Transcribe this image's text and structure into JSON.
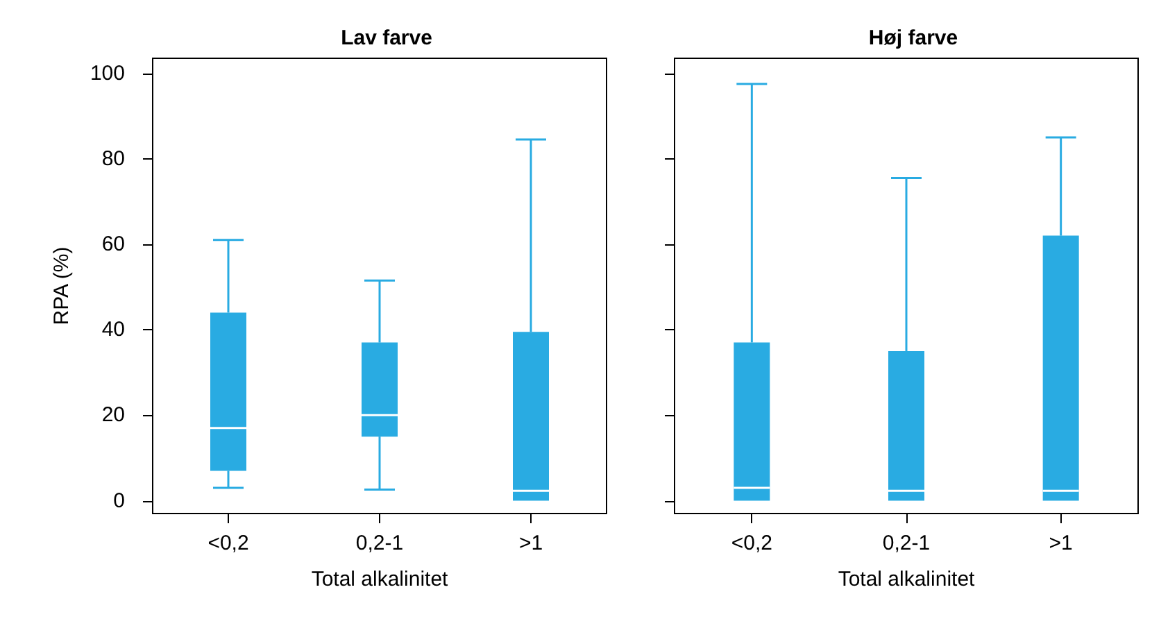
{
  "chart_data": [
    {
      "type": "box",
      "title": "Lav farve",
      "xlabel": "Total alkalinitet",
      "ylabel": "RPA (%)",
      "categories": [
        "<0,2",
        "0,2-1",
        ">1"
      ],
      "color": "#29abe2",
      "ylim": [
        -3,
        103.5
      ],
      "yticks": [
        0,
        20,
        40,
        60,
        80,
        100
      ],
      "boxes": [
        {
          "low": 3,
          "q1": 7,
          "median": 17,
          "q3": 44,
          "high": 61
        },
        {
          "low": 2.6,
          "q1": 15,
          "median": 20,
          "q3": 37,
          "high": 51.5
        },
        {
          "low": 0,
          "q1": 0,
          "median": 2.3,
          "q3": 39.5,
          "high": 84.5
        }
      ]
    },
    {
      "type": "box",
      "title": "Høj farve",
      "xlabel": "Total alkalinitet",
      "categories": [
        "<0,2",
        "0,2-1",
        ">1"
      ],
      "color": "#29abe2",
      "ylim": [
        -3,
        103.5
      ],
      "yticks": [
        0,
        20,
        40,
        60,
        80,
        100
      ],
      "tick_labels": "x",
      "boxes": [
        {
          "low": 0,
          "q1": 0,
          "median": 3,
          "q3": 37,
          "high": 97.5
        },
        {
          "low": 0,
          "q1": 0,
          "median": 2.3,
          "q3": 35,
          "high": 75.5
        },
        {
          "low": 0,
          "q1": 0,
          "median": 2.3,
          "q3": 62,
          "high": 85
        }
      ]
    }
  ]
}
